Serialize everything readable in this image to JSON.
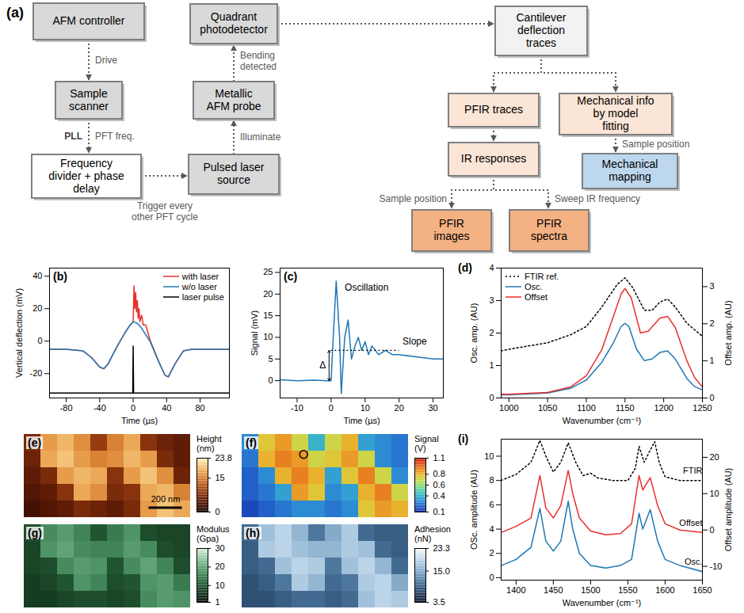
{
  "diagram": {
    "letter": "(a)",
    "nodes": [
      {
        "label": "AFM controller",
        "color": "#d9d9d9"
      },
      {
        "label": "Sample scanner",
        "color": "#d9d9d9"
      },
      {
        "label": "Frequency divider + phase delay",
        "color": "#ffffff"
      },
      {
        "label": "Pulsed laser source",
        "color": "#d9d9d9"
      },
      {
        "label": "Metallic AFM probe",
        "color": "#d9d9d9"
      },
      {
        "label": "Quadrant photodetector",
        "color": "#d9d9d9"
      },
      {
        "label": "Cantilever deflection traces",
        "color": "#f2f2f2"
      },
      {
        "label": "PFIR traces",
        "color": "#fbe5d6"
      },
      {
        "label": "Mechanical info by model fitting",
        "color": "#fbe5d6"
      },
      {
        "label": "IR responses",
        "color": "#fbe5d6"
      },
      {
        "label": "Mechanical mapping",
        "color": "#bdd7ee"
      },
      {
        "label": "PFIR images",
        "color": "#f4b183"
      },
      {
        "label": "PFIR spectra",
        "color": "#f4b183"
      }
    ],
    "edges": [
      {
        "from": 0,
        "to": 1,
        "label": "Drive"
      },
      {
        "from": 1,
        "to": 2,
        "label": "PFT freq.",
        "side_label": "PLL"
      },
      {
        "from": 2,
        "to": 3,
        "label": "Trigger every other PFT cycle"
      },
      {
        "from": 3,
        "to": 4,
        "label": "Illuminate"
      },
      {
        "from": 4,
        "to": 5,
        "label": "Bending detected"
      },
      {
        "from": 5,
        "to": 6
      },
      {
        "from": 6,
        "to": 7
      },
      {
        "from": 6,
        "to": 8
      },
      {
        "from": 7,
        "to": 9
      },
      {
        "from": 8,
        "to": 10,
        "label": "Sample position"
      },
      {
        "from": 9,
        "to": 11,
        "label": "Sample position"
      },
      {
        "from": 9,
        "to": 12,
        "label": "Sweep IR frequency"
      }
    ]
  },
  "chart_data": [
    {
      "letter": "(b)",
      "type": "line",
      "xlabel": "Time (µs)",
      "ylabel": "Vertical deflection (mV)",
      "xlim": [
        -100,
        115
      ],
      "xticks": [
        -80,
        -40,
        0,
        40,
        80
      ],
      "ylim": [
        -35,
        45
      ],
      "yticks": [
        -20,
        0,
        20,
        40
      ],
      "legend": "upper right",
      "series": [
        {
          "name": "with laser",
          "color": "#e8302e",
          "x": [
            -100,
            -80,
            -60,
            -50,
            -40,
            -35,
            -30,
            -20,
            -10,
            -5,
            0,
            1,
            2,
            3,
            4,
            5,
            6,
            7,
            8,
            10,
            12,
            15,
            20,
            30,
            38,
            42,
            50,
            60,
            70,
            90,
            115
          ],
          "values": [
            -5,
            -5,
            -6,
            -10,
            -16,
            -17,
            -14,
            -4,
            5,
            9,
            12,
            34,
            20,
            30,
            18,
            25,
            14,
            20,
            12,
            16,
            10,
            10,
            1,
            -12,
            -21,
            -22,
            -14,
            -6,
            -5,
            -5,
            -5
          ]
        },
        {
          "name": "w/o laser",
          "color": "#1f77b4",
          "x": [
            -100,
            -80,
            -60,
            -50,
            -40,
            -35,
            -30,
            -20,
            -10,
            -5,
            0,
            5,
            10,
            20,
            30,
            38,
            42,
            50,
            60,
            70,
            90,
            115
          ],
          "values": [
            -5,
            -5,
            -6,
            -10,
            -16,
            -17,
            -14,
            -4,
            5,
            9,
            12,
            11,
            8,
            0,
            -12,
            -21,
            -22,
            -14,
            -6,
            -5,
            -5,
            -5
          ]
        },
        {
          "name": "laser pulse",
          "color": "#000000",
          "x": [
            -100,
            -0.5,
            0,
            0.5,
            115
          ],
          "values": [
            -32,
            -32,
            -3,
            -32,
            -32
          ]
        }
      ]
    },
    {
      "letter": "(c)",
      "type": "line",
      "xlabel": "Time (µs)",
      "ylabel": "Signal (mV)",
      "xlim": [
        -15,
        33
      ],
      "xticks": [
        -10,
        0,
        10,
        20,
        30
      ],
      "ylim": [
        -4,
        26
      ],
      "yticks": [
        0,
        5,
        10,
        15,
        20,
        25
      ],
      "series": [
        {
          "color": "#1f77b4",
          "x": [
            -15,
            -10,
            -5,
            -1,
            0,
            0.5,
            1.5,
            2.5,
            3,
            4,
            5,
            6,
            7,
            8,
            9,
            10,
            11,
            12,
            14,
            16,
            18,
            20,
            25,
            30,
            33
          ],
          "values": [
            0.2,
            0,
            0.1,
            0,
            0,
            8,
            23,
            10,
            -3,
            10,
            14,
            5,
            8,
            10,
            7,
            9,
            6,
            8,
            6,
            7,
            6,
            6,
            5.5,
            5,
            5
          ]
        }
      ],
      "annotations": [
        {
          "text": "Oscillation",
          "x": 4,
          "y": 21.5
        },
        {
          "text": "Slope",
          "x": 21,
          "y": 9
        },
        {
          "text": "Δ",
          "x": -3.4,
          "y": 3.5
        }
      ],
      "reference_line": {
        "x": [
          0,
          20
        ],
        "y": 7,
        "line_style": "dotted"
      },
      "delta_arrow": {
        "x": -0.6,
        "y": [
          0,
          7
        ]
      }
    },
    {
      "letter": "(d)",
      "type": "line",
      "xlabel": "Wavenumber (cm⁻¹)",
      "ylabel": "Osc. amp. (AU)",
      "y2label": "Offset amp. (AU)",
      "xlim": [
        990,
        1250
      ],
      "xticks": [
        1000,
        1050,
        1100,
        1150,
        1200,
        1250
      ],
      "ylim": [
        0,
        4
      ],
      "yticks": [
        0,
        1,
        2,
        3,
        4
      ],
      "y2lim": [
        0,
        3.5
      ],
      "y2ticks": [
        0,
        1,
        2,
        3
      ],
      "legend": "upper left",
      "series": [
        {
          "name": "FTIR ref.",
          "color": "#000000",
          "line_style": "dotted",
          "x": [
            990,
            1000,
            1050,
            1080,
            1100,
            1120,
            1140,
            1150,
            1160,
            1175,
            1185,
            1195,
            1205,
            1215,
            1230,
            1250
          ],
          "values": [
            1.45,
            1.5,
            1.7,
            1.95,
            2.2,
            2.8,
            3.5,
            3.7,
            3.4,
            2.7,
            2.7,
            2.95,
            3.05,
            2.8,
            2.3,
            1.9
          ]
        },
        {
          "name": "Osc.",
          "color": "#1f77b4",
          "x": [
            990,
            1000,
            1050,
            1080,
            1100,
            1120,
            1135,
            1145,
            1150,
            1155,
            1165,
            1175,
            1185,
            1195,
            1205,
            1215,
            1230,
            1240,
            1250
          ],
          "values": [
            0.1,
            0.1,
            0.15,
            0.3,
            0.55,
            1.1,
            1.7,
            2.2,
            2.3,
            2.2,
            1.5,
            1.15,
            1.2,
            1.4,
            1.45,
            1.2,
            0.6,
            0.35,
            0.25
          ]
        },
        {
          "name": "Offset",
          "color": "#e8302e",
          "axis": "y2",
          "x": [
            990,
            1000,
            1050,
            1080,
            1100,
            1120,
            1135,
            1145,
            1150,
            1158,
            1170,
            1180,
            1195,
            1205,
            1215,
            1230,
            1240,
            1250
          ],
          "values": [
            0.1,
            0.1,
            0.15,
            0.3,
            0.6,
            1.3,
            2.2,
            2.8,
            2.95,
            2.7,
            1.75,
            1.8,
            2.15,
            2.2,
            1.9,
            1.0,
            0.55,
            0.3
          ]
        }
      ]
    },
    {
      "letter": "(e)",
      "type": "heatmap",
      "tick_labels": false,
      "xlim": [
        0,
        1000
      ],
      "ylim": [
        0,
        500
      ],
      "cells": [
        [
          7,
          17,
          19,
          16,
          9,
          15,
          18,
          8,
          6,
          5
        ],
        [
          6,
          18,
          20,
          17,
          15,
          16,
          19,
          17,
          7,
          5
        ],
        [
          5,
          7,
          17,
          19,
          18,
          8,
          17,
          20,
          16,
          6
        ],
        [
          4,
          5,
          8,
          18,
          16,
          7,
          8,
          18,
          19,
          15
        ],
        [
          3,
          4,
          5,
          7,
          6,
          5,
          7,
          17,
          20,
          18
        ]
      ],
      "colorbar": {
        "label": "Height (nm)",
        "range": [
          0,
          23.8
        ],
        "ticks": [
          0,
          15,
          23.8
        ]
      },
      "scale_bar": {
        "length": 200,
        "label": "200 nm"
      }
    },
    {
      "letter": "(f)",
      "type": "heatmap",
      "tick_labels": false,
      "xlim": [
        0,
        1000
      ],
      "ylim": [
        0,
        500
      ],
      "cells": [
        [
          0.3,
          0.75,
          0.85,
          0.7,
          0.4,
          0.7,
          0.8,
          0.35,
          0.3,
          0.25
        ],
        [
          0.25,
          0.8,
          0.9,
          0.85,
          0.7,
          0.75,
          0.85,
          0.7,
          0.3,
          0.25
        ],
        [
          0.2,
          0.3,
          0.8,
          0.9,
          0.8,
          0.35,
          0.75,
          0.9,
          0.7,
          0.3
        ],
        [
          0.2,
          0.25,
          0.35,
          0.85,
          0.75,
          0.3,
          0.35,
          0.8,
          0.9,
          0.7
        ],
        [
          0.15,
          0.2,
          0.25,
          0.3,
          0.3,
          0.25,
          0.3,
          0.75,
          0.85,
          0.8
        ]
      ],
      "colorbar": {
        "label": "Signal (V)",
        "range": [
          0.1,
          1.1
        ],
        "ticks": [
          0.1,
          0.4,
          0.6,
          0.8,
          1.1
        ]
      },
      "points": [
        {
          "x": 370,
          "y": 120
        }
      ]
    },
    {
      "letter": "(g)",
      "type": "heatmap",
      "tick_labels": false,
      "xlim": [
        0,
        1000
      ],
      "ylim": [
        0,
        500
      ],
      "cells": [
        [
          9,
          17,
          19,
          16,
          10,
          15,
          18,
          9,
          8,
          8
        ],
        [
          8,
          18,
          20,
          17,
          16,
          16,
          19,
          17,
          9,
          8
        ],
        [
          8,
          9,
          17,
          19,
          18,
          10,
          17,
          20,
          16,
          9
        ],
        [
          7,
          8,
          10,
          18,
          16,
          9,
          10,
          18,
          19,
          15
        ],
        [
          7,
          7,
          8,
          9,
          9,
          8,
          9,
          17,
          19,
          18
        ]
      ],
      "colorbar": {
        "label": "Modulus (Gpa)",
        "range": [
          1,
          30
        ],
        "ticks": [
          1,
          10,
          20,
          30
        ]
      }
    },
    {
      "letter": "(h)",
      "type": "heatmap",
      "tick_labels": false,
      "xlim": [
        0,
        1000
      ],
      "ylim": [
        0,
        500
      ],
      "cells": [
        [
          10,
          17,
          19,
          16,
          11,
          15,
          18,
          10,
          9,
          9
        ],
        [
          9,
          18,
          19,
          17,
          16,
          16,
          18,
          17,
          10,
          9
        ],
        [
          9,
          10,
          17,
          19,
          18,
          11,
          17,
          19,
          16,
          10
        ],
        [
          8,
          9,
          11,
          18,
          16,
          10,
          11,
          18,
          19,
          15
        ],
        [
          8,
          8,
          9,
          10,
          10,
          9,
          10,
          17,
          19,
          18
        ]
      ],
      "colorbar": {
        "label": "Adhesion (nN)",
        "range": [
          3.5,
          23.3
        ],
        "ticks": [
          3.5,
          {
            "value": 15,
            "label": "15.0"
          },
          23.3
        ]
      }
    },
    {
      "letter": "(i)",
      "type": "line",
      "xlabel": "Wavenumber (cm⁻¹)",
      "ylabel": "OSc. amplitude (AU)",
      "y2label": "Offset amplitude (AU)",
      "xlim": [
        1380,
        1650
      ],
      "xticks": [
        1400,
        1450,
        1500,
        1550,
        1600,
        1650
      ],
      "ylim": [
        -0.2,
        11.4
      ],
      "yticks": [
        0,
        2,
        4,
        6,
        8,
        10
      ],
      "y2lim": [
        -13.8,
        25
      ],
      "y2ticks": [
        -10,
        0,
        10,
        20
      ],
      "series": [
        {
          "name": "FTIR",
          "color": "#000000",
          "line_style": "dotted",
          "x": [
            1380,
            1400,
            1420,
            1432,
            1440,
            1450,
            1460,
            1470,
            1480,
            1490,
            1500,
            1510,
            1530,
            1550,
            1560,
            1565,
            1572,
            1580,
            1586,
            1592,
            1600,
            1620,
            1650
          ],
          "values": [
            8,
            8.5,
            9.5,
            11.3,
            10,
            8.7,
            9.5,
            11.1,
            9.5,
            8.4,
            8.6,
            8.2,
            8,
            8,
            9,
            10.8,
            9.5,
            10.5,
            11.2,
            9.5,
            8.3,
            8,
            8
          ]
        },
        {
          "name": "Offset",
          "color": "#e8302e",
          "axis": "y2",
          "x": [
            1380,
            1400,
            1420,
            1432,
            1440,
            1450,
            1460,
            1470,
            1476,
            1485,
            1500,
            1520,
            1540,
            1555,
            1565,
            1570,
            1580,
            1590,
            1600,
            1620,
            1650
          ],
          "values": [
            -0.7,
            1,
            3.3,
            15,
            6,
            3.3,
            6.7,
            16.4,
            10,
            3.3,
            -0.3,
            -1.3,
            -1,
            1.7,
            15,
            11,
            14.4,
            6.7,
            1.7,
            0,
            -0.7
          ]
        },
        {
          "name": "Osc.",
          "color": "#1f77b4",
          "x": [
            1380,
            1400,
            1420,
            1432,
            1440,
            1450,
            1460,
            1470,
            1476,
            1485,
            1500,
            1520,
            1540,
            1555,
            1565,
            1570,
            1580,
            1590,
            1600,
            1620,
            1650
          ],
          "values": [
            1,
            1.5,
            2.5,
            5.7,
            3,
            2.2,
            3,
            6.3,
            4,
            2,
            1,
            0.8,
            1,
            1.5,
            5.3,
            4,
            5.6,
            3,
            1.5,
            1,
            0.5
          ]
        }
      ]
    }
  ]
}
